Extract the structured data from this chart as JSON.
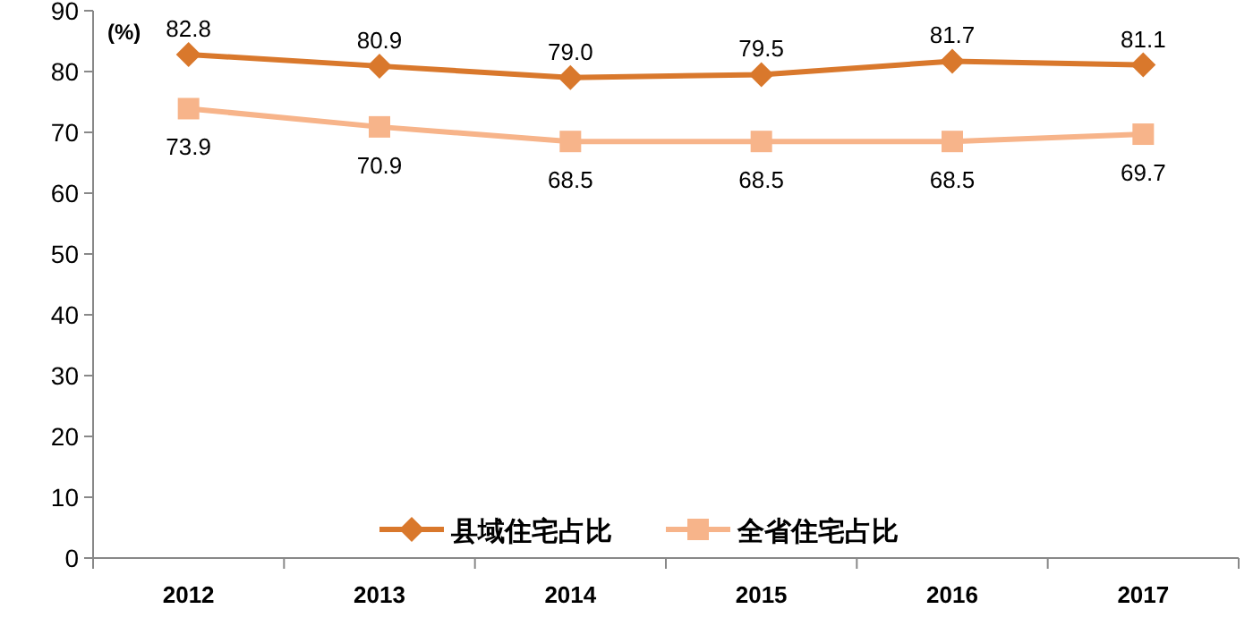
{
  "chart_data": {
    "type": "line",
    "ylabel": "(%)",
    "categories": [
      "2012",
      "2013",
      "2014",
      "2015",
      "2016",
      "2017"
    ],
    "series": [
      {
        "name": "县域住宅占比",
        "color": "#d9782c",
        "marker": "diamond",
        "values": [
          82.8,
          80.9,
          79.0,
          79.5,
          81.7,
          81.1
        ],
        "value_labels": [
          "82.8",
          "80.9",
          "79.0",
          "79.5",
          "81.7",
          "81.1"
        ]
      },
      {
        "name": "全省住宅占比",
        "color": "#f7b48a",
        "marker": "square",
        "values": [
          73.9,
          70.9,
          68.5,
          68.5,
          68.5,
          69.7
        ],
        "value_labels": [
          "73.9",
          "70.9",
          "68.5",
          "68.5",
          "68.5",
          "69.7"
        ]
      }
    ],
    "ylim": [
      0,
      90
    ],
    "yticks": [
      0,
      10,
      20,
      30,
      40,
      50,
      60,
      70,
      80,
      90
    ],
    "legend": "bottom",
    "grid": false,
    "line_style": "solid"
  }
}
